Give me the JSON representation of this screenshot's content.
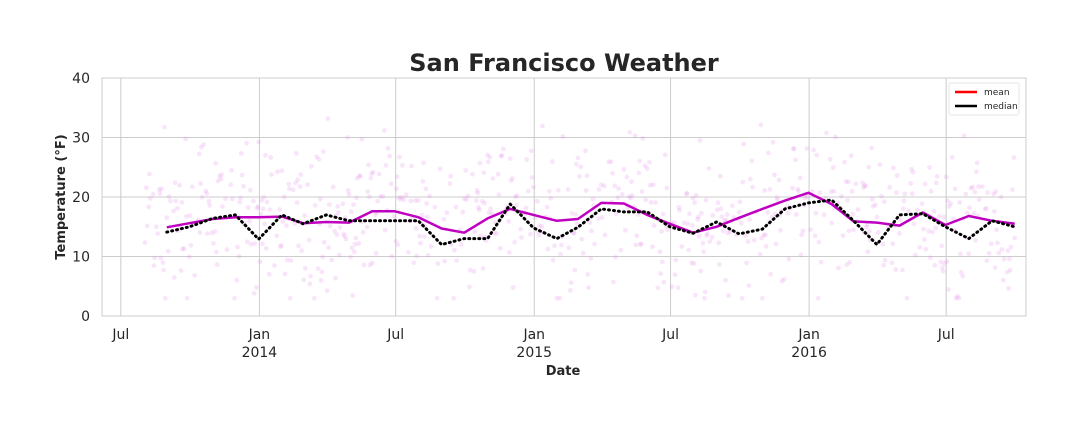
{
  "chart_data": {
    "type": "line",
    "title": "San Francisco Weather",
    "xlabel": "Date",
    "ylabel": "Temperature (°F)",
    "ylim": [
      0,
      40
    ],
    "xlim": [
      "2013-06-06",
      "2016-10-15"
    ],
    "yticks": [
      0,
      10,
      20,
      30,
      40
    ],
    "xticks": [
      {
        "date": "2013-07-01",
        "label": "Jul",
        "sub": ""
      },
      {
        "date": "2014-01-01",
        "label": "Jan",
        "sub": "2014"
      },
      {
        "date": "2014-07-01",
        "label": "Jul",
        "sub": ""
      },
      {
        "date": "2015-01-01",
        "label": "Jan",
        "sub": "2015"
      },
      {
        "date": "2015-07-01",
        "label": "Jul",
        "sub": ""
      },
      {
        "date": "2016-01-01",
        "label": "Jan",
        "sub": "2016"
      },
      {
        "date": "2016-07-01",
        "label": "Jul",
        "sub": ""
      }
    ],
    "grid": true,
    "legend_position": "top-right",
    "legend": [
      {
        "name": "mean",
        "color": "#ff0000"
      },
      {
        "name": "median",
        "color": "#000000"
      }
    ],
    "scatter": {
      "color": "#e48ae8",
      "description_range": [
        3,
        38
      ],
      "date_range": [
        "2013-08-01",
        "2016-09-30"
      ]
    },
    "series": [
      {
        "name": "mean",
        "color": "#c000c0",
        "style": "solid",
        "points": [
          [
            "2013-08-31",
            14.9
          ],
          [
            "2013-09-30",
            15.6
          ],
          [
            "2013-10-31",
            16.3
          ],
          [
            "2013-11-30",
            16.6
          ],
          [
            "2013-12-31",
            16.6
          ],
          [
            "2014-01-31",
            16.7
          ],
          [
            "2014-02-28",
            15.6
          ],
          [
            "2014-03-31",
            15.8
          ],
          [
            "2014-04-30",
            15.7
          ],
          [
            "2014-05-31",
            17.6
          ],
          [
            "2014-06-30",
            17.6
          ],
          [
            "2014-07-31",
            16.6
          ],
          [
            "2014-08-31",
            14.7
          ],
          [
            "2014-09-30",
            14.0
          ],
          [
            "2014-10-31",
            16.4
          ],
          [
            "2014-11-30",
            18.0
          ],
          [
            "2014-12-31",
            17.0
          ],
          [
            "2015-01-31",
            16.0
          ],
          [
            "2015-02-28",
            16.3
          ],
          [
            "2015-03-31",
            19.0
          ],
          [
            "2015-04-30",
            18.9
          ],
          [
            "2015-05-31",
            17.0
          ],
          [
            "2015-06-30",
            15.5
          ],
          [
            "2015-07-31",
            14.0
          ],
          [
            "2015-08-31",
            15.0
          ],
          [
            "2015-09-30",
            16.5
          ],
          [
            "2015-10-31",
            18.0
          ],
          [
            "2015-11-30",
            19.4
          ],
          [
            "2015-12-31",
            20.7
          ],
          [
            "2016-01-31",
            18.8
          ],
          [
            "2016-02-29",
            15.9
          ],
          [
            "2016-03-31",
            15.7
          ],
          [
            "2016-04-30",
            15.2
          ],
          [
            "2016-05-31",
            17.4
          ],
          [
            "2016-06-30",
            15.3
          ],
          [
            "2016-07-31",
            16.8
          ],
          [
            "2016-08-31",
            16.0
          ],
          [
            "2016-09-30",
            15.5
          ]
        ]
      },
      {
        "name": "median",
        "color": "#000000",
        "style": "dotted",
        "points": [
          [
            "2013-08-31",
            14.1
          ],
          [
            "2013-09-30",
            15.0
          ],
          [
            "2013-10-31",
            16.4
          ],
          [
            "2013-11-30",
            17.0
          ],
          [
            "2013-12-31",
            12.9
          ],
          [
            "2014-01-31",
            17.0
          ],
          [
            "2014-02-28",
            15.5
          ],
          [
            "2014-03-31",
            17.0
          ],
          [
            "2014-04-30",
            16.0
          ],
          [
            "2014-05-31",
            16.0
          ],
          [
            "2014-06-30",
            16.0
          ],
          [
            "2014-07-31",
            16.0
          ],
          [
            "2014-08-31",
            12.0
          ],
          [
            "2014-09-30",
            13.0
          ],
          [
            "2014-10-31",
            13.0
          ],
          [
            "2014-11-30",
            18.8
          ],
          [
            "2014-12-31",
            14.8
          ],
          [
            "2015-01-31",
            13.0
          ],
          [
            "2015-02-28",
            14.9
          ],
          [
            "2015-03-31",
            18.0
          ],
          [
            "2015-04-30",
            17.5
          ],
          [
            "2015-05-31",
            17.5
          ],
          [
            "2015-06-30",
            15.0
          ],
          [
            "2015-07-31",
            13.9
          ],
          [
            "2015-08-31",
            15.8
          ],
          [
            "2015-09-30",
            13.8
          ],
          [
            "2015-10-31",
            14.6
          ],
          [
            "2015-11-30",
            18.0
          ],
          [
            "2015-12-31",
            19.0
          ],
          [
            "2016-01-31",
            19.5
          ],
          [
            "2016-02-29",
            16.0
          ],
          [
            "2016-03-31",
            12.0
          ],
          [
            "2016-04-30",
            17.0
          ],
          [
            "2016-05-31",
            17.2
          ],
          [
            "2016-06-30",
            15.0
          ],
          [
            "2016-07-31",
            13.0
          ],
          [
            "2016-08-31",
            16.0
          ],
          [
            "2016-09-30",
            15.0
          ]
        ]
      }
    ]
  }
}
